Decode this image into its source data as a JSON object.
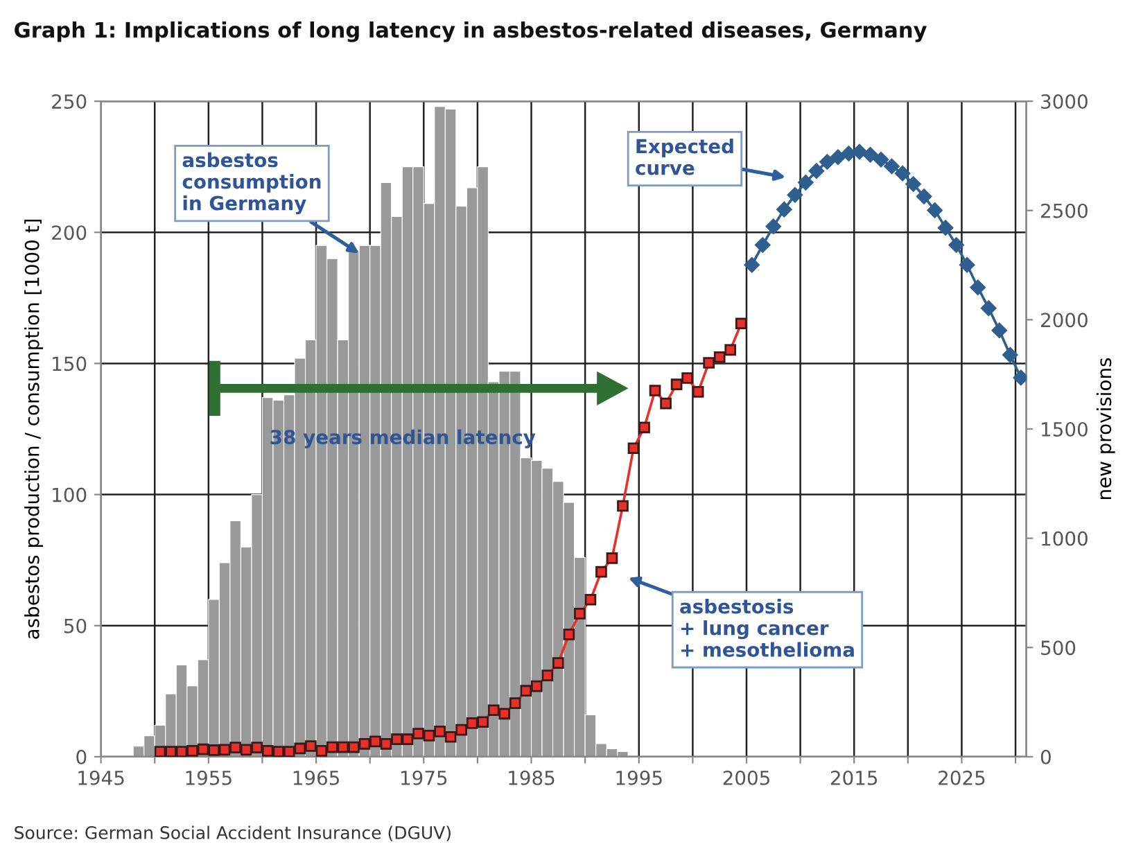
{
  "chart_data": {
    "type": "bar",
    "title": "Graph 1: Implications of long latency in asbestos-related diseases, Germany",
    "ylabel": "asbestos production / consumption [1000 t]",
    "y2label": "new provisions",
    "xlim": [
      1945,
      2031
    ],
    "xticks": [
      1945,
      {
        "value": 1950,
        "label": null
      },
      1955,
      {
        "value": 1960,
        "label": null
      },
      1965,
      {
        "value": 1970,
        "label": null
      },
      1975,
      {
        "value": 1980,
        "label": null
      },
      1985,
      {
        "value": 1990,
        "label": null
      },
      1995,
      {
        "value": 2000,
        "label": null
      },
      2005,
      {
        "value": 2010,
        "label": null
      },
      2015,
      {
        "value": 2020,
        "label": null
      },
      2025,
      {
        "value": 2030,
        "label": null
      }
    ],
    "ylim": [
      0,
      250
    ],
    "yticks": [
      0,
      50,
      100,
      150,
      200,
      250
    ],
    "y2lim": [
      0,
      3000
    ],
    "y2ticks": [
      0,
      500,
      1000,
      1500,
      2000,
      2500,
      3000
    ],
    "grid": true,
    "legend": false,
    "series": [
      {
        "axis": "y",
        "color": "#999999",
        "x": [
          1948.5,
          1949.5,
          1950.5,
          1951.5,
          1952.5,
          1953.5,
          1954.5,
          1955.5,
          1956.5,
          1957.5,
          1958.5,
          1959.5,
          1960.5,
          1961.5,
          1962.5,
          1963.5,
          1964.5,
          1965.5,
          1966.5,
          1967.5,
          1968.5,
          1969.5,
          1970.5,
          1971.5,
          1972.5,
          1973.5,
          1974.5,
          1975.5,
          1976.5,
          1977.5,
          1978.5,
          1979.5,
          1980.5,
          1981.5,
          1982.5,
          1983.5,
          1984.5,
          1985.5,
          1986.5,
          1987.5,
          1988.5,
          1989.5,
          1990.5,
          1991.5,
          1992.5,
          1993.5
        ],
        "values": [
          4,
          8,
          12,
          24,
          35,
          27,
          37,
          60,
          74,
          90,
          80,
          100,
          137,
          136,
          138,
          152,
          159,
          195,
          190,
          159,
          193,
          195,
          195,
          219,
          206,
          225,
          225,
          211,
          248,
          247,
          210,
          217,
          225,
          143,
          147,
          147,
          114,
          113,
          110,
          105,
          97,
          76,
          16,
          5,
          3,
          2
        ]
      },
      {
        "type": "line",
        "axis": "y2",
        "color": "#e8302a",
        "marker": "square",
        "line_style": "solid",
        "x": [
          1950.5,
          1951.5,
          1952.5,
          1953.5,
          1954.5,
          1955.5,
          1956.5,
          1957.5,
          1958.5,
          1959.5,
          1960.5,
          1961.5,
          1962.5,
          1963.5,
          1964.5,
          1965.5,
          1966.5,
          1967.5,
          1968.5,
          1969.5,
          1970.5,
          1971.5,
          1972.5,
          1973.5,
          1974.5,
          1975.5,
          1976.5,
          1977.5,
          1978.5,
          1979.5,
          1980.5,
          1981.5,
          1982.5,
          1983.5,
          1984.5,
          1985.5,
          1986.5,
          1987.5,
          1988.5,
          1989.5,
          1990.5,
          1991.5,
          1992.5,
          1993.5,
          1994.5,
          1995.5,
          1996.5,
          1997.5,
          1998.5,
          1999.5,
          2000.5,
          2001.5,
          2002.5,
          2003.5,
          2004.5
        ],
        "values": [
          23,
          23,
          23,
          27,
          34,
          30,
          32,
          42,
          32,
          42,
          27,
          23,
          23,
          38,
          49,
          27,
          44,
          44,
          44,
          59,
          70,
          59,
          80,
          80,
          106,
          97,
          116,
          91,
          123,
          154,
          159,
          213,
          197,
          245,
          302,
          323,
          372,
          429,
          560,
          655,
          719,
          846,
          909,
          1148,
          1412,
          1507,
          1676,
          1617,
          1704,
          1733,
          1670,
          1803,
          1829,
          1862,
          1983
        ]
      },
      {
        "type": "line",
        "axis": "y2",
        "color": "#2e5f8f",
        "marker": "diamond",
        "line_style": "solid",
        "x": [
          2005.5,
          2006.5,
          2007.5,
          2008.5,
          2009.5,
          2010.5,
          2011.5,
          2012.5,
          2013.5,
          2014.5,
          2015.5,
          2016.5,
          2017.5,
          2018.5,
          2019.5,
          2020.5,
          2021.5,
          2022.5,
          2023.5,
          2024.5,
          2025.5,
          2026.5,
          2027.5,
          2028.5,
          2029.5,
          2030.5
        ],
        "values": [
          2251,
          2342,
          2427,
          2505,
          2571,
          2628,
          2681,
          2723,
          2744,
          2761,
          2769,
          2755,
          2733,
          2702,
          2670,
          2621,
          2564,
          2501,
          2421,
          2342,
          2251,
          2148,
          2053,
          1951,
          1839,
          1735
        ]
      }
    ],
    "annotations": [
      {
        "text": "asbestos\nconsumption\nin Germany",
        "x": 1969,
        "y": 192
      },
      "Expected\ncurve",
      "38 years median latency",
      "asbestosis\n+ lung cancer\n+ mesothelioma",
      "Source: German Social Accident Insurance (DGUV)"
    ]
  }
}
